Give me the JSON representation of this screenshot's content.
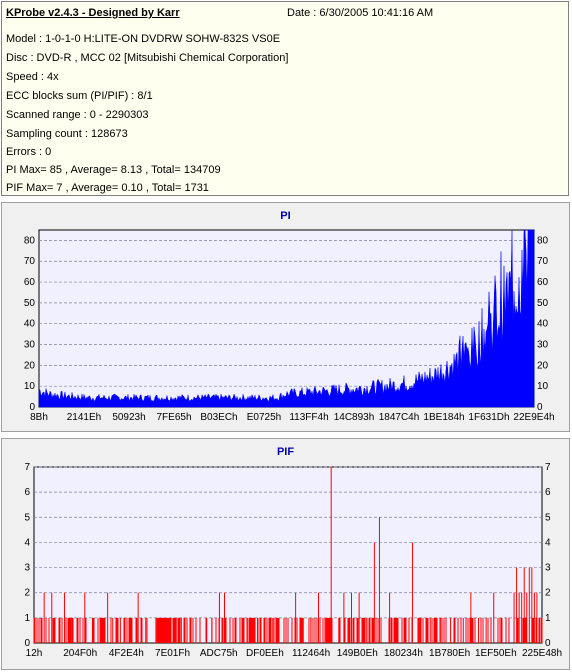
{
  "info": {
    "title": "KProbe v2.4.3 - Designed by Karr",
    "date": "Date : 6/30/2005 10:41:16 AM",
    "lines": [
      "Model : 1-0-1-0 H:LITE-ON DVDRW SOHW-832S  VS0E",
      "Disc : DVD-R , MCC 02 [Mitsubishi Chemical Corporation]",
      "Speed : 4x",
      "ECC blocks sum (PI/PIF) : 8/1",
      "Scanned range : 0 - 2290303",
      "Sampling count : 128673",
      "Errors : 0",
      "PI Max= 85 , Average= 8.13 , Total= 134709",
      "PIF Max= 7 , Average= 0.10 , Total= 1731"
    ]
  },
  "chart_data": [
    {
      "type": "area",
      "title": "PI",
      "ylim": [
        0,
        85
      ],
      "yticks": [
        0,
        10,
        20,
        30,
        40,
        50,
        60,
        70,
        80
      ],
      "xticks": [
        "8Bh",
        "2141Eh",
        "50923h",
        "7FE65h",
        "B03ECh",
        "E0725h",
        "113FF4h",
        "14C893h",
        "1847C4h",
        "1BE184h",
        "1F631Dh",
        "22E9E4h"
      ],
      "grid": true,
      "color": "#0000ff",
      "envelope": [
        [
          0,
          9
        ],
        [
          0.02,
          7
        ],
        [
          0.05,
          6
        ],
        [
          0.1,
          5
        ],
        [
          0.15,
          5
        ],
        [
          0.2,
          5
        ],
        [
          0.25,
          5
        ],
        [
          0.3,
          5
        ],
        [
          0.35,
          5
        ],
        [
          0.4,
          5
        ],
        [
          0.45,
          5
        ],
        [
          0.48,
          5
        ],
        [
          0.5,
          7
        ],
        [
          0.55,
          8
        ],
        [
          0.6,
          9
        ],
        [
          0.65,
          10
        ],
        [
          0.7,
          11
        ],
        [
          0.75,
          13
        ],
        [
          0.8,
          17
        ],
        [
          0.85,
          25
        ],
        [
          0.88,
          32
        ],
        [
          0.9,
          40
        ],
        [
          0.93,
          50
        ],
        [
          0.95,
          60
        ],
        [
          0.97,
          70
        ],
        [
          0.985,
          78
        ],
        [
          1.0,
          80
        ]
      ],
      "max": 85
    },
    {
      "type": "bar",
      "title": "PIF",
      "ylim": [
        0,
        7
      ],
      "yticks": [
        0,
        1,
        2,
        3,
        4,
        5,
        6,
        7
      ],
      "xticks": [
        "12h",
        "204F0h",
        "4F2E4h",
        "7E01Fh",
        "ADC75h",
        "DF0EEh",
        "112464h",
        "149B0Eh",
        "180234h",
        "1B780Eh",
        "1EF50Eh",
        "225E48h"
      ],
      "grid": true,
      "color": "#ff0000",
      "spikes": [
        [
          0.02,
          2
        ],
        [
          0.035,
          2
        ],
        [
          0.05,
          1
        ],
        [
          0.06,
          2
        ],
        [
          0.075,
          1
        ],
        [
          0.085,
          1
        ],
        [
          0.1,
          2
        ],
        [
          0.115,
          1
        ],
        [
          0.13,
          1
        ],
        [
          0.145,
          2
        ],
        [
          0.155,
          1
        ],
        [
          0.17,
          1
        ],
        [
          0.19,
          1
        ],
        [
          0.205,
          2
        ],
        [
          0.22,
          1
        ],
        [
          0.24,
          1
        ],
        [
          0.255,
          1
        ],
        [
          0.28,
          1
        ],
        [
          0.29,
          1
        ],
        [
          0.34,
          1
        ],
        [
          0.35,
          1
        ],
        [
          0.365,
          2
        ],
        [
          0.375,
          2
        ],
        [
          0.42,
          1
        ],
        [
          0.44,
          1
        ],
        [
          0.47,
          1
        ],
        [
          0.5,
          1
        ],
        [
          0.515,
          2
        ],
        [
          0.53,
          1
        ],
        [
          0.545,
          1
        ],
        [
          0.56,
          2
        ],
        [
          0.575,
          1
        ],
        [
          0.585,
          7
        ],
        [
          0.6,
          1
        ],
        [
          0.61,
          2
        ],
        [
          0.625,
          2
        ],
        [
          0.64,
          2
        ],
        [
          0.655,
          1
        ],
        [
          0.67,
          4
        ],
        [
          0.68,
          5
        ],
        [
          0.7,
          2
        ],
        [
          0.715,
          1
        ],
        [
          0.73,
          1
        ],
        [
          0.745,
          4
        ],
        [
          0.76,
          1
        ],
        [
          0.78,
          1
        ],
        [
          0.8,
          1
        ],
        [
          0.82,
          1
        ],
        [
          0.845,
          1
        ],
        [
          0.86,
          2
        ],
        [
          0.875,
          1
        ],
        [
          0.89,
          1
        ],
        [
          0.905,
          2
        ],
        [
          0.92,
          1
        ],
        [
          0.935,
          1
        ],
        [
          0.945,
          2
        ],
        [
          0.95,
          3
        ],
        [
          0.955,
          2
        ],
        [
          0.96,
          2
        ],
        [
          0.965,
          3
        ],
        [
          0.97,
          2
        ],
        [
          0.975,
          3
        ],
        [
          0.98,
          3
        ],
        [
          0.985,
          2
        ],
        [
          0.99,
          2
        ],
        [
          0.995,
          1
        ]
      ],
      "max": 7
    }
  ]
}
